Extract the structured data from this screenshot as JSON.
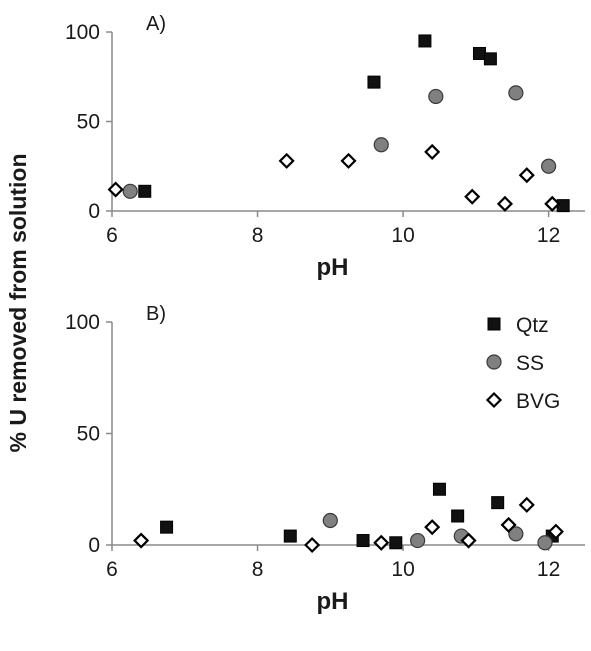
{
  "chart_data": [
    {
      "type": "scatter",
      "panel_label": "A)",
      "xlabel": "pH",
      "ylabel": "% U removed from solution",
      "xlim": [
        6,
        12.5
      ],
      "ylim": [
        0,
        100
      ],
      "xticks": [
        6,
        8,
        10,
        12
      ],
      "yticks": [
        0,
        50,
        100
      ],
      "series": [
        {
          "name": "Qtz",
          "marker": "square",
          "color": "#111111",
          "x": [
            6.45,
            9.6,
            10.3,
            11.05,
            11.2,
            12.2
          ],
          "y": [
            11,
            72,
            95,
            88,
            85,
            3
          ]
        },
        {
          "name": "SS",
          "marker": "circle",
          "color": "#808080",
          "x": [
            6.25,
            9.7,
            10.45,
            11.55,
            12.0
          ],
          "y": [
            11,
            37,
            64,
            66,
            25
          ]
        },
        {
          "name": "BVG",
          "marker": "diamond",
          "color": "#ffffff",
          "x": [
            6.05,
            8.4,
            9.25,
            10.4,
            10.95,
            11.4,
            11.7,
            12.05
          ],
          "y": [
            12,
            28,
            28,
            33,
            8,
            4,
            20,
            4
          ]
        }
      ]
    },
    {
      "type": "scatter",
      "panel_label": "B)",
      "xlabel": "pH",
      "ylabel": "% U removed from solution",
      "xlim": [
        6,
        12.5
      ],
      "ylim": [
        0,
        100
      ],
      "xticks": [
        6,
        8,
        10,
        12
      ],
      "yticks": [
        0,
        50,
        100
      ],
      "legend_position": "top-right",
      "series": [
        {
          "name": "Qtz",
          "marker": "square",
          "color": "#111111",
          "x": [
            6.75,
            8.45,
            9.45,
            9.9,
            10.5,
            10.75,
            11.3,
            12.05
          ],
          "y": [
            8,
            4,
            2,
            1,
            25,
            13,
            19,
            4
          ]
        },
        {
          "name": "SS",
          "marker": "circle",
          "color": "#808080",
          "x": [
            9.0,
            10.2,
            10.8,
            11.55,
            11.95
          ],
          "y": [
            11,
            2,
            4,
            5,
            1
          ]
        },
        {
          "name": "BVG",
          "marker": "diamond",
          "color": "#ffffff",
          "x": [
            6.4,
            8.75,
            9.7,
            10.4,
            10.9,
            11.45,
            11.7,
            12.1
          ],
          "y": [
            2,
            0,
            1,
            8,
            2,
            9,
            18,
            6
          ]
        }
      ]
    }
  ]
}
